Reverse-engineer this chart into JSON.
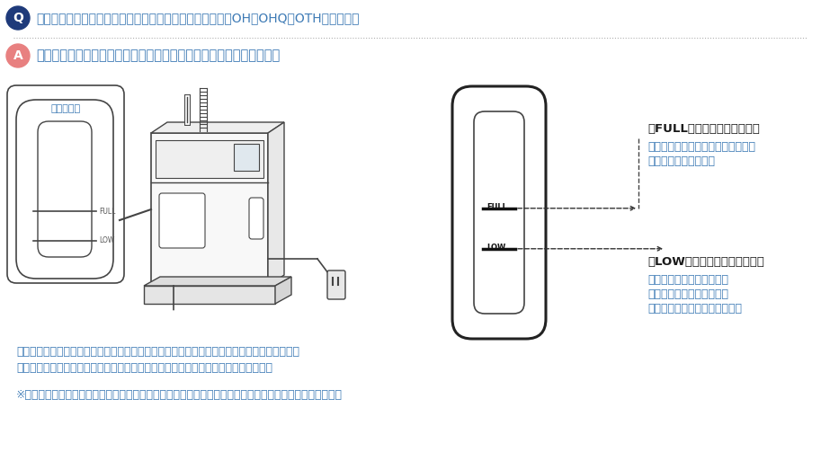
{
  "bg_color": "#ffffff",
  "q_circle_color": "#1e3a7a",
  "q_text": "Q",
  "q_circle_text_color": "#ffffff",
  "title_text": "暖房水（不凍液）がどれくらい残っているかわからない（OH・OHQ・OTHシリーズ）",
  "title_color": "#3d7ab5",
  "separator_color": "#b0b0b0",
  "a_circle_color": "#e88080",
  "a_text": "A",
  "a_circle_text_color": "#ffffff",
  "answer_text": "給湯機器本体にある、フロントカバーの水位確認窓で確認できます。",
  "answer_color": "#3d7ab5",
  "label_mizui": "水位確認窓",
  "label_mizui_color": "#3d7ab5",
  "full_label_title": "「FULL」の位置より多い場合",
  "full_label_title_color": "#1a1a1a",
  "full_label_body1": "暖房水が膨張しているためであり、",
  "full_label_body2": "異常ではありません。",
  "full_label_body_color": "#3d7ab5",
  "low_label_title": "「LOW」の位置より少ない場合",
  "low_label_title_color": "#1a1a1a",
  "low_label_body1": "暖房水が減っているので、",
  "low_label_body2": "暖房水の補充が必要です。",
  "low_label_body3": "（下記「暖房水の補充」参照）",
  "low_label_body_color": "#3d7ab5",
  "body_text1": "暖房水（不凍液）に含まれる水分が蕲発して、暖房水（不凍液）の量が減ることがあります。",
  "body_text2": "ときどきフロントカバーの水位確認窓で暖房水（不凍液）の量を点検してください。",
  "body_text_color": "#3d7ab5",
  "note_text": "※暖房水（不凍液）の量がみえにくいときは、懐中電灯などで光を当てると見やすくなる場合があります。",
  "note_text_color": "#3d7ab5",
  "line_color": "#444444",
  "dashed_line_color": "#444444"
}
